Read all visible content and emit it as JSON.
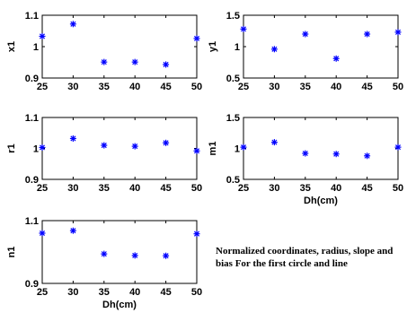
{
  "note": "Normalized coordinates, radius, slope and bias For the first circle and line",
  "colors": {
    "marker": "#0000ff",
    "axes": "#000000",
    "background": "#ffffff"
  },
  "chart_data": [
    {
      "type": "scatter",
      "title": "",
      "xlabel": "",
      "ylabel": "x1",
      "x": [
        25,
        30,
        35,
        40,
        45,
        50
      ],
      "y": [
        1.033,
        1.072,
        0.951,
        0.951,
        0.943,
        1.026
      ],
      "xlim": [
        25,
        50
      ],
      "ylim": [
        0.9,
        1.1
      ],
      "xticks": [
        "25",
        "30",
        "35",
        "40",
        "45",
        "50"
      ],
      "yticks": [
        "0.9",
        "1",
        "1.1"
      ],
      "marker": "*",
      "grid": false
    },
    {
      "type": "scatter",
      "title": "",
      "xlabel": "",
      "ylabel": "y1",
      "x": [
        25,
        30,
        35,
        40,
        45,
        50
      ],
      "y": [
        1.28,
        0.96,
        1.2,
        0.81,
        1.2,
        1.23
      ],
      "xlim": [
        25,
        50
      ],
      "ylim": [
        0.5,
        1.5
      ],
      "xticks": [
        "25",
        "30",
        "35",
        "40",
        "45",
        "50"
      ],
      "yticks": [
        "0.5",
        "1",
        "1.5"
      ],
      "marker": "*",
      "grid": false
    },
    {
      "type": "scatter",
      "title": "",
      "xlabel": "",
      "ylabel": "r1",
      "x": [
        25,
        30,
        35,
        40,
        45,
        50
      ],
      "y": [
        1.003,
        1.032,
        1.01,
        1.007,
        1.018,
        0.992
      ],
      "xlim": [
        25,
        50
      ],
      "ylim": [
        0.9,
        1.1
      ],
      "xticks": [
        "25",
        "30",
        "35",
        "40",
        "45",
        "50"
      ],
      "yticks": [
        "0.9",
        "1",
        "1.1"
      ],
      "marker": "*",
      "grid": false
    },
    {
      "type": "scatter",
      "title": "",
      "xlabel": "Dh(cm)",
      "ylabel": "m1",
      "x": [
        25,
        30,
        35,
        40,
        45,
        50
      ],
      "y": [
        1.02,
        1.1,
        0.92,
        0.91,
        0.88,
        1.02
      ],
      "xlim": [
        25,
        50
      ],
      "ylim": [
        0.5,
        1.5
      ],
      "xticks": [
        "25",
        "30",
        "35",
        "40",
        "45",
        "50"
      ],
      "yticks": [
        "0.5",
        "1",
        "1.5"
      ],
      "marker": "*",
      "grid": false
    },
    {
      "type": "scatter",
      "title": "",
      "xlabel": "Dh(cm)",
      "ylabel": "n1",
      "x": [
        25,
        30,
        35,
        40,
        45,
        50
      ],
      "y": [
        1.06,
        1.068,
        0.994,
        0.989,
        0.988,
        1.058
      ],
      "xlim": [
        25,
        50
      ],
      "ylim": [
        0.9,
        1.1
      ],
      "xticks": [
        "25",
        "30",
        "35",
        "40",
        "45",
        "50"
      ],
      "yticks": [
        "0.9",
        "1.1"
      ],
      "marker": "*",
      "grid": false
    }
  ]
}
